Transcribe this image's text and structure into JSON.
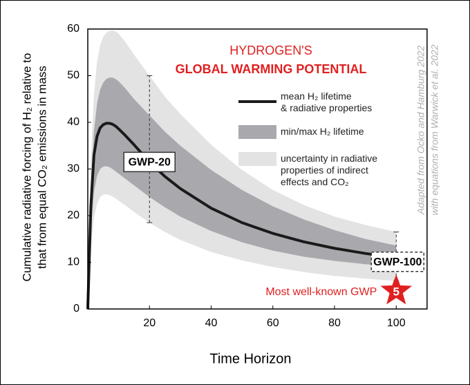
{
  "chart_data": {
    "type": "line-band",
    "title": [
      "HYDROGEN'S",
      "GLOBAL WARMING POTENTIAL"
    ],
    "x_label": "Time Horizon",
    "y_label": [
      "Cumulative radiative forcing of H₂  relative to",
      "that from equal CO₂ emissions in mass"
    ],
    "credit": [
      "Adapted from Ocko and Hamburg 2022",
      "with equations from Warwick et al. 2022"
    ],
    "x": [
      0,
      1,
      2,
      3,
      4,
      5,
      6,
      7,
      8,
      9,
      10,
      12,
      15,
      20,
      25,
      30,
      40,
      50,
      60,
      70,
      80,
      90,
      100
    ],
    "series": [
      {
        "name": "mean H₂ lifetime\n& radiative properties",
        "color": "#1a1a1a",
        "values": [
          0,
          22,
          33,
          37,
          38.8,
          39.5,
          39.8,
          39.8,
          39.6,
          39.2,
          38.6,
          37.3,
          35.2,
          31.5,
          28.4,
          25.8,
          21.6,
          18.5,
          16.2,
          14.4,
          13,
          11.9,
          11
        ]
      },
      {
        "name": "min/max H₂ lifetime",
        "color": "#a9a9ad",
        "upper": [
          0,
          26,
          38,
          44,
          47,
          48.5,
          49.3,
          49.6,
          49.6,
          49.3,
          48.8,
          47.4,
          45,
          41.5,
          38,
          35,
          29.8,
          25.5,
          22,
          19.2,
          16.9,
          15,
          13.6
        ],
        "lower": [
          0,
          17,
          25,
          28.5,
          30,
          30.5,
          30.6,
          30.4,
          30,
          29.5,
          29,
          28,
          26.5,
          24,
          21.8,
          19.8,
          16.7,
          14.3,
          12.5,
          11.2,
          10.3,
          9.6,
          9.1
        ]
      },
      {
        "name": "uncertainty in radiative\nproperties of indirect\neffects and CO₂",
        "color": "#e3e3e3",
        "upper": [
          0,
          32,
          46,
          53,
          56.5,
          58.3,
          59.2,
          59.6,
          59.7,
          59.5,
          59,
          57.4,
          54.5,
          50,
          45.5,
          41.8,
          35.2,
          29.8,
          25.5,
          22.3,
          19.8,
          18,
          16.5
        ],
        "lower": [
          0,
          13,
          19.5,
          22.5,
          24,
          24.5,
          24.6,
          24.4,
          24.1,
          23.7,
          23.2,
          22.3,
          20.8,
          18.5,
          16.5,
          14.8,
          12.2,
          10.4,
          9,
          7.9,
          7.1,
          6.5,
          6
        ]
      }
    ],
    "gwp_markers": [
      {
        "label": "GWP-20",
        "x": 20
      },
      {
        "label": "GWP-100",
        "x": 100
      }
    ],
    "highlight": {
      "text": "Most well-known GWP",
      "star_label": "5",
      "color": "#e02020"
    },
    "xlim": [
      0,
      110
    ],
    "ylim": [
      0,
      60
    ],
    "xticks": [
      20,
      40,
      60,
      80,
      100
    ],
    "yticks": [
      0,
      10,
      20,
      30,
      40,
      50,
      60
    ]
  }
}
